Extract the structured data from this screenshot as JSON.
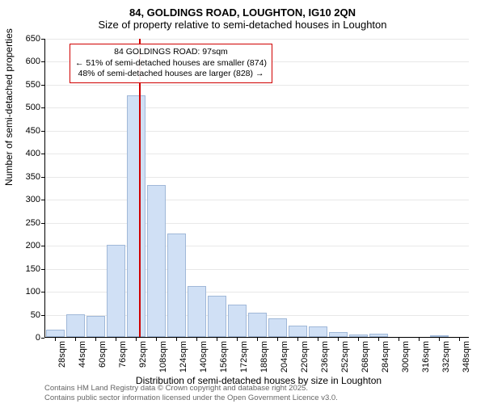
{
  "title": "84, GOLDINGS ROAD, LOUGHTON, IG10 2QN",
  "subtitle": "Size of property relative to semi-detached houses in Loughton",
  "y_label": "Number of semi-detached properties",
  "x_label": "Distribution of semi-detached houses by size in Loughton",
  "chart": {
    "type": "histogram",
    "y_ticks": [
      0,
      50,
      100,
      150,
      200,
      250,
      300,
      350,
      400,
      450,
      500,
      550,
      600,
      650
    ],
    "y_max": 650,
    "x_categories": [
      "28sqm",
      "44sqm",
      "60sqm",
      "76sqm",
      "92sqm",
      "108sqm",
      "124sqm",
      "140sqm",
      "156sqm",
      "172sqm",
      "188sqm",
      "204sqm",
      "220sqm",
      "236sqm",
      "252sqm",
      "268sqm",
      "284sqm",
      "300sqm",
      "316sqm",
      "332sqm",
      "348sqm"
    ],
    "values": [
      15,
      50,
      45,
      200,
      525,
      330,
      225,
      110,
      90,
      70,
      52,
      40,
      25,
      22,
      10,
      5,
      7,
      0,
      0,
      2,
      0
    ],
    "bar_fill": "#d0e0f5",
    "bar_border": "#a0b8d8",
    "grid_color": "#e8e8e8",
    "background": "#ffffff",
    "ref_line_index": 4.15,
    "ref_line_color": "#d00000"
  },
  "info_box": {
    "line1": "84 GOLDINGS ROAD: 97sqm",
    "line2": "← 51% of semi-detached houses are smaller (874)",
    "line3": "48% of semi-detached houses are larger (828) →"
  },
  "footer": {
    "line1": "Contains HM Land Registry data © Crown copyright and database right 2025.",
    "line2": "Contains public sector information licensed under the Open Government Licence v3.0."
  }
}
